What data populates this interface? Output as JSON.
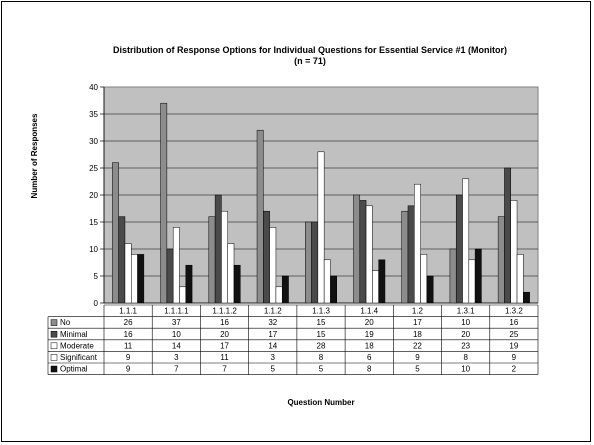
{
  "chart_data": {
    "type": "bar",
    "title": "Distribution of Response Options for Individual Questions for Essential Service #1 (Monitor)",
    "subtitle": "(n = 71)",
    "xlabel": "Question Number",
    "ylabel": "Number of Responses",
    "ylim": [
      0,
      40
    ],
    "yticks": [
      0,
      5,
      10,
      15,
      20,
      25,
      30,
      35,
      40
    ],
    "grid": true,
    "legend": "table-left",
    "categories": [
      "1.1.1",
      "1.1.1.1",
      "1.1.1.2",
      "1.1.2",
      "1.1.3",
      "1.1.4",
      "1.2",
      "1.3.1",
      "1.3.2"
    ],
    "series": [
      {
        "name": "No",
        "color": "#8c8c8c",
        "values": [
          26,
          37,
          16,
          32,
          15,
          20,
          17,
          10,
          16
        ]
      },
      {
        "name": "Minimal",
        "color": "#4a4a4a",
        "values": [
          16,
          10,
          20,
          17,
          15,
          19,
          18,
          20,
          25
        ]
      },
      {
        "name": "Moderate",
        "color": "#ffffff",
        "values": [
          11,
          14,
          17,
          14,
          28,
          18,
          22,
          23,
          19
        ]
      },
      {
        "name": "Significant",
        "color": "#ffffff",
        "values": [
          9,
          3,
          11,
          3,
          8,
          6,
          9,
          8,
          9
        ]
      },
      {
        "name": "Optimal",
        "color": "#111111",
        "values": [
          9,
          7,
          7,
          5,
          5,
          8,
          5,
          10,
          2
        ]
      }
    ]
  },
  "colors": {
    "plot_background": "#c0c0c0",
    "grid": "#000000"
  }
}
